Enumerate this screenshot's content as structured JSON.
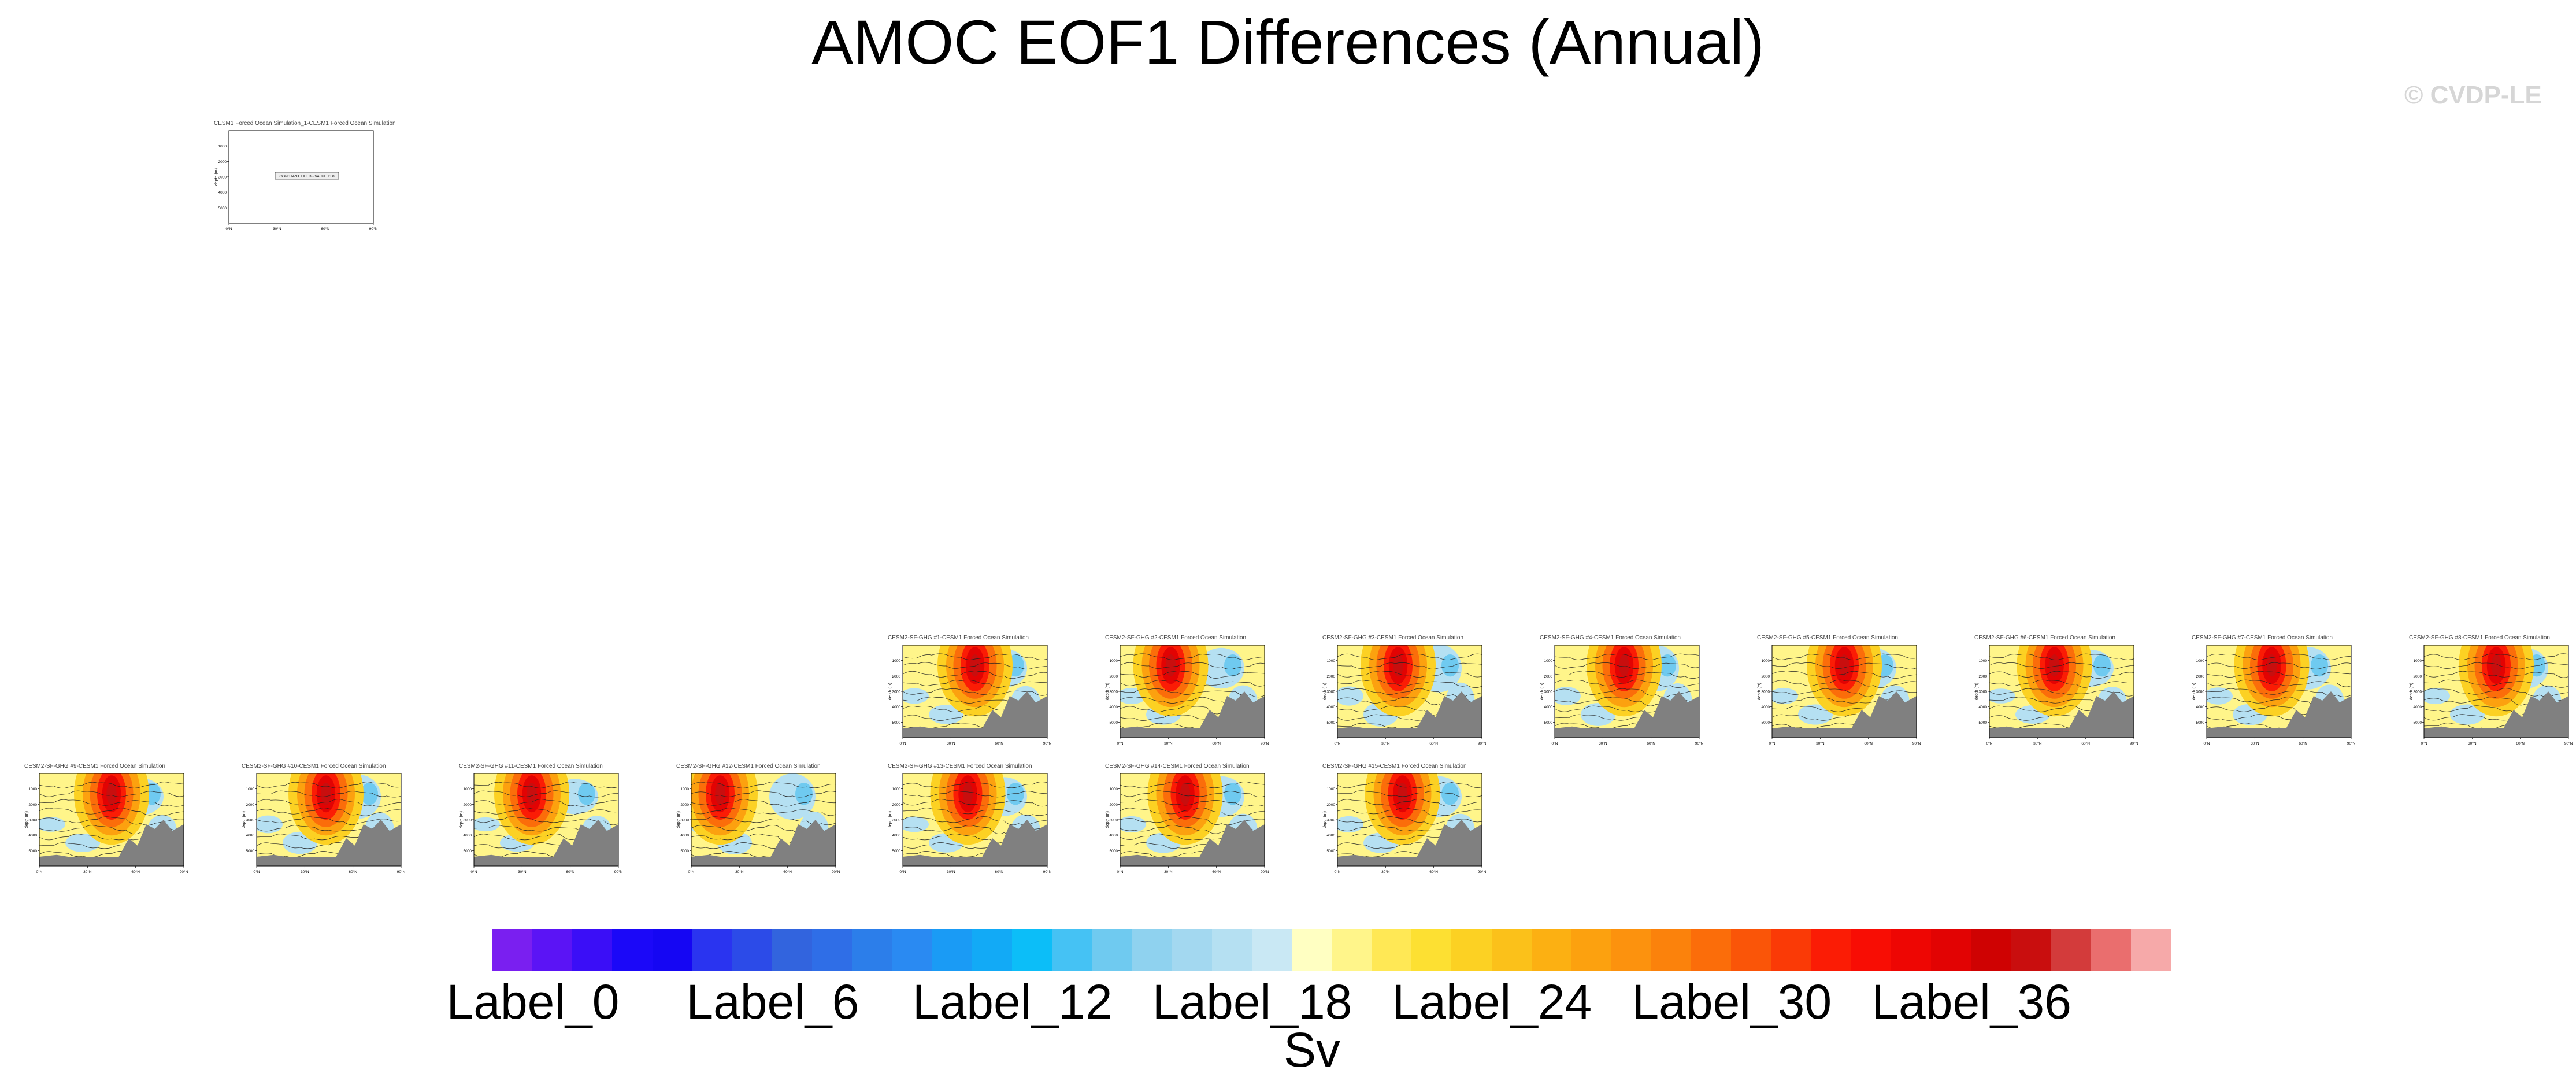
{
  "title": "AMOC EOF1 Differences (Annual)",
  "watermark": "© CVDP-LE",
  "colors": {
    "land": "#808080",
    "contour": "#222222",
    "colorbar": [
      "#7a1ff0",
      "#5b14f5",
      "#3b0ef7",
      "#1b08f8",
      "#1506f3",
      "#2a34f0",
      "#2c4be8",
      "#3264de",
      "#2f6ee7",
      "#2c7eea",
      "#2a8af2",
      "#1a9bf5",
      "#12aaf6",
      "#0cbef8",
      "#45c2f4",
      "#6fcaf0",
      "#8fd2ef",
      "#a3d8f0",
      "#b5e0f2",
      "#c9e8f4",
      "#ffffc2",
      "#fff58a",
      "#ffe855",
      "#fde032",
      "#fcd123",
      "#fbc11a",
      "#fcb012",
      "#fca10f",
      "#fc920e",
      "#fb820c",
      "#fb6d0a",
      "#fa5508",
      "#fa3a06",
      "#fb1c05",
      "#f80d04",
      "#ee0603",
      "#e20303",
      "#cf0202",
      "#c90e0e",
      "#d33b3b",
      "#ea6e6e",
      "#f6a9a9"
    ]
  },
  "chart_data": {
    "type": "contour-map-panels",
    "title": "AMOC EOF1 Differences (Annual)",
    "colorbar": {
      "units": "Sv",
      "n_colors": 42,
      "tick_labels": [
        "Label_0",
        "Label_6",
        "Label_12",
        "Label_18",
        "Label_24",
        "Label_30",
        "Label_36"
      ],
      "tick_indices": [
        0,
        6,
        12,
        18,
        24,
        30,
        36
      ]
    },
    "panel_axes": {
      "ylabel": "depth (m)",
      "yticks": [
        "1000",
        "2000",
        "3000",
        "4000",
        "5000"
      ],
      "xticks": [
        "0°N",
        "30°N",
        "60°N",
        "90°N"
      ]
    },
    "panels": [
      {
        "title": "CESM1 Forced Ocean Simulation_1-CESM1 Forced Ocean Simulation",
        "note": "CONSTANT FIELD - VALUE IS 0",
        "empty": true,
        "hot": null,
        "bands": null
      },
      {
        "title": "CESM2-SF-GHG #1-CESM1 Forced Ocean Simulation",
        "hot": 0.5,
        "bands": 0.25,
        "empty": false
      },
      {
        "title": "CESM2-SF-GHG #2-CESM1 Forced Ocean Simulation",
        "hot": 0.35,
        "bands": 0.3,
        "empty": false
      },
      {
        "title": "CESM2-SF-GHG #3-CESM1 Forced Ocean Simulation",
        "hot": 0.42,
        "bands": 0.5,
        "empty": false
      },
      {
        "title": "CESM2-SF-GHG #4-CESM1 Forced Ocean Simulation",
        "hot": 0.48,
        "bands": 0.45,
        "empty": false
      },
      {
        "title": "CESM2-SF-GHG #5-CESM1 Forced Ocean Simulation",
        "hot": 0.5,
        "bands": 0.3,
        "empty": false
      },
      {
        "title": "CESM2-SF-GHG #6-CESM1 Forced Ocean Simulation",
        "hot": 0.45,
        "bands": 0.2,
        "empty": false
      },
      {
        "title": "CESM2-SF-GHG #7-CESM1 Forced Ocean Simulation",
        "hot": 0.45,
        "bands": 0.35,
        "empty": false
      },
      {
        "title": "CESM2-SF-GHG #8-CESM1 Forced Ocean Simulation",
        "hot": 0.5,
        "bands": 0.3,
        "empty": false
      },
      {
        "title": "CESM2-SF-GHG #9-CESM1 Forced Ocean Simulation",
        "hot": 0.5,
        "bands": 0.2,
        "empty": false
      },
      {
        "title": "CESM2-SF-GHG #10-CESM1 Forced Ocean Simulation",
        "hot": 0.48,
        "bands": 0.4,
        "empty": false
      },
      {
        "title": "CESM2-SF-GHG #11-CESM1 Forced Ocean Simulation",
        "hot": 0.4,
        "bands": 0.15,
        "empty": false
      },
      {
        "title": "CESM2-SF-GHG #12-CESM1 Forced Ocean Simulation",
        "hot": 0.2,
        "bands": 0.45,
        "empty": false
      },
      {
        "title": "CESM2-SF-GHG #13-CESM1 Forced Ocean Simulation",
        "hot": 0.45,
        "bands": 0.25,
        "empty": false
      },
      {
        "title": "CESM2-SF-GHG #14-CESM1 Forced Ocean Simulation",
        "hot": 0.45,
        "bands": 0.3,
        "empty": false
      },
      {
        "title": "CESM2-SF-GHG #15-CESM1 Forced Ocean Simulation",
        "hot": 0.45,
        "bands": 0.3,
        "empty": false
      }
    ]
  }
}
